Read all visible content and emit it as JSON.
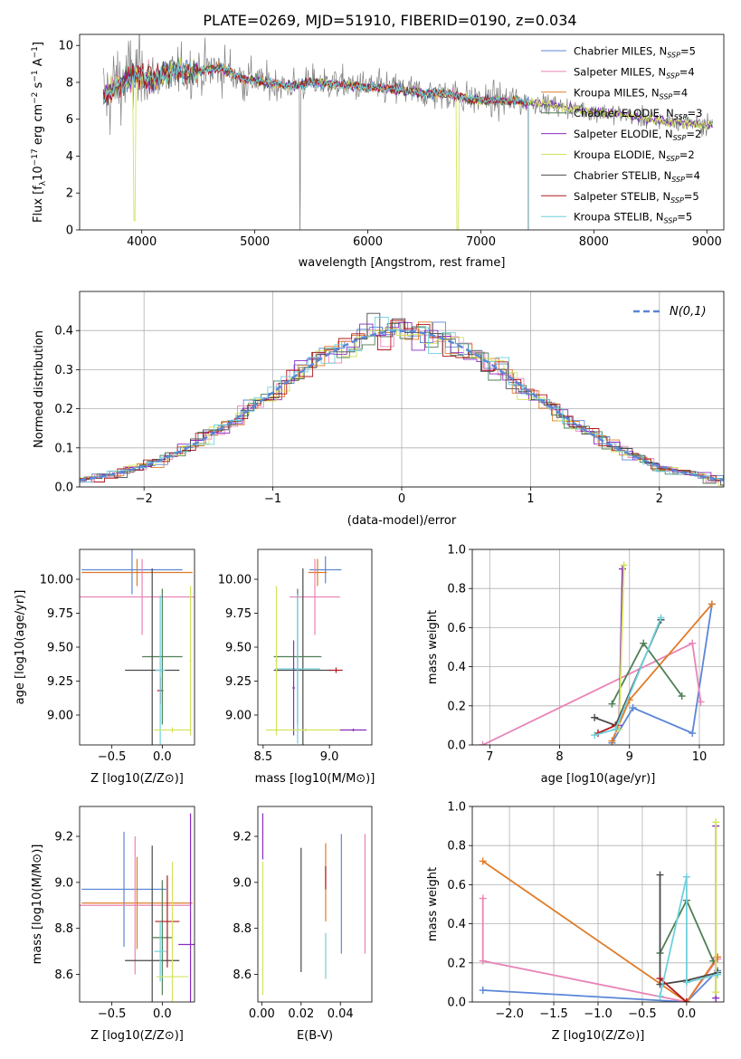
{
  "figure_title": "PLATE=0269, MJD=51910, FIBERID=0190, z=0.034",
  "colors": {
    "chabrier_miles": "#5b86d6",
    "salpeter_miles": "#e884b6",
    "kroupa_miles": "#e07b28",
    "chabrier_elodie": "#4f7f55",
    "salpeter_elodie": "#8a2bc2",
    "kroupa_elodie": "#d4e35c",
    "chabrier_stelib": "#4a4a4a",
    "salpeter_stelib": "#b0181d",
    "kroupa_stelib": "#6fd0dc",
    "data": "#808080",
    "normal": "#5b86d6"
  },
  "chart_data": [
    {
      "id": "spectrum",
      "type": "line",
      "xlabel": "wavelength [Angstrom, rest frame]",
      "ylabel": "Flux [f_λ10^-17 erg cm^-2 s^-1 A^-1]",
      "xlim": [
        3450,
        9150
      ],
      "ylim": [
        0,
        10.6
      ],
      "xticks": [
        4000,
        5000,
        6000,
        7000,
        8000,
        9000
      ],
      "yticks": [
        0,
        2,
        4,
        6,
        8,
        10
      ],
      "legend_position": "upper right",
      "series": [
        {
          "key": "chabrier_miles",
          "name": "Chabrier MILES, N_SSP=5",
          "base": "Chabrier MILES, N",
          "sub": "SSP",
          "tail": "=5"
        },
        {
          "key": "salpeter_miles",
          "name": "Salpeter MILES, N_SSP=4",
          "base": "Salpeter MILES, N",
          "sub": "SSP",
          "tail": "=4"
        },
        {
          "key": "kroupa_miles",
          "name": "Kroupa MILES, N_SSP=4",
          "base": "Kroupa MILES, N",
          "sub": "SSP",
          "tail": "=4"
        },
        {
          "key": "chabrier_elodie",
          "name": "Chabrier ELODIE, N_SSP=3",
          "base": "Chabrier ELODIE, N",
          "sub": "SSP",
          "tail": "=3"
        },
        {
          "key": "salpeter_elodie",
          "name": "Salpeter ELODIE, N_SSP=2",
          "base": "Salpeter ELODIE, N",
          "sub": "SSP",
          "tail": "=2"
        },
        {
          "key": "kroupa_elodie",
          "name": "Kroupa ELODIE, N_SSP=2",
          "base": "Kroupa ELODIE, N",
          "sub": "SSP",
          "tail": "=2"
        },
        {
          "key": "chabrier_stelib",
          "name": "Chabrier STELIB, N_SSP=4",
          "base": "Chabrier STELIB, N",
          "sub": "SSP",
          "tail": "=4"
        },
        {
          "key": "salpeter_stelib",
          "name": "Salpeter STELIB, N_SSP=5",
          "base": "Salpeter STELIB, N",
          "sub": "SSP",
          "tail": "=5"
        },
        {
          "key": "kroupa_stelib",
          "name": "Kroupa STELIB, N_SSP=5",
          "base": "Kroupa STELIB, N",
          "sub": "SSP",
          "tail": "=5"
        }
      ],
      "continuum": [
        [
          3680,
          7.2
        ],
        [
          3800,
          8.0
        ],
        [
          3950,
          8.4
        ],
        [
          4100,
          8.2
        ],
        [
          4300,
          8.6
        ],
        [
          4500,
          8.6
        ],
        [
          4700,
          8.8
        ],
        [
          4900,
          8.2
        ],
        [
          5100,
          8.0
        ],
        [
          5300,
          7.8
        ],
        [
          5500,
          8.0
        ],
        [
          5700,
          7.9
        ],
        [
          5900,
          7.8
        ],
        [
          6100,
          7.7
        ],
        [
          6300,
          7.6
        ],
        [
          6500,
          7.4
        ],
        [
          6700,
          7.4
        ],
        [
          6900,
          7.1
        ],
        [
          7100,
          7.0
        ],
        [
          7300,
          7.0
        ],
        [
          7420,
          6.9
        ],
        [
          7600,
          6.8
        ],
        [
          7800,
          6.6
        ],
        [
          8000,
          6.4
        ],
        [
          8200,
          6.3
        ],
        [
          8400,
          6.1
        ],
        [
          8600,
          5.9
        ],
        [
          8800,
          5.8
        ],
        [
          9000,
          5.7
        ]
      ]
    },
    {
      "id": "residuals",
      "type": "line",
      "xlabel": "(data-model)/error",
      "ylabel": "Normed distribution",
      "xlim": [
        -2.5,
        2.5
      ],
      "ylim": [
        0,
        0.5
      ],
      "xticks": [
        -2,
        -1,
        0,
        1,
        2
      ],
      "yticks": [
        0.0,
        0.1,
        0.2,
        0.3,
        0.4
      ],
      "legend_label": "N(0,1)",
      "legend_position": "upper right"
    },
    {
      "id": "age_vs_Z",
      "type": "scatter",
      "xlabel": "Z [log10(Z/Z⊙)]",
      "ylabel": "age  [log10(age/yr)]",
      "xlim": [
        -0.82,
        0.32
      ],
      "ylim": [
        8.78,
        10.22
      ],
      "xticks": [
        -0.5,
        0.0
      ],
      "yticks": [
        9.0,
        9.25,
        9.5,
        9.75,
        10.0
      ],
      "points": [
        {
          "key": "chabrier_miles",
          "x": -0.3,
          "y": 10.07,
          "xe": 0.5,
          "ye": 0.18
        },
        {
          "key": "kroupa_miles",
          "x": -0.25,
          "y": 10.05,
          "xe": 0.55,
          "ye": 0.1
        },
        {
          "key": "salpeter_miles",
          "x": -0.2,
          "y": 9.87,
          "xe": 0.7,
          "ye": 0.28
        },
        {
          "key": "salpeter_stelib",
          "x": -0.02,
          "y": 9.18,
          "xe": 0.03,
          "ye": 0.1
        },
        {
          "key": "chabrier_elodie",
          "x": 0.0,
          "y": 9.43,
          "xe": 0.2,
          "ye": 0.5
        },
        {
          "key": "chabrier_stelib",
          "x": -0.1,
          "y": 9.33,
          "xe": 0.27,
          "ye": 0.75
        },
        {
          "key": "kroupa_stelib",
          "x": -0.02,
          "y": 9.33,
          "xe": 0.05,
          "ye": 0.55
        },
        {
          "key": "kroupa_elodie",
          "x": 0.1,
          "y": 8.89,
          "xe": 0.18,
          "ye": 0.02
        },
        {
          "key": "kroupa_elodie",
          "x": 0.28,
          "y": 9.4,
          "xe": 0.01,
          "ye": 0.55
        }
      ]
    },
    {
      "id": "age_vs_mass",
      "type": "scatter",
      "xlabel": "mass [log10(M/M⊙)]",
      "ylabel": "",
      "xlim": [
        8.46,
        9.32
      ],
      "ylim": [
        8.78,
        10.22
      ],
      "xticks": [
        8.5,
        9.0
      ],
      "yticks": [
        9.0,
        9.25,
        9.5,
        9.75,
        10.0
      ],
      "points": [
        {
          "key": "chabrier_miles",
          "x": 8.97,
          "y": 10.07,
          "xe": 0.12,
          "ye": 0.1
        },
        {
          "key": "kroupa_miles",
          "x": 8.91,
          "y": 10.05,
          "xe": 0.07,
          "ye": 0.1
        },
        {
          "key": "salpeter_miles",
          "x": 8.89,
          "y": 9.87,
          "xe": 0.19,
          "ye": 0.28
        },
        {
          "key": "chabrier_stelib",
          "x": 8.8,
          "y": 9.33,
          "xe": 0.22,
          "ye": 0.75
        },
        {
          "key": "chabrier_elodie",
          "x": 8.76,
          "y": 9.43,
          "xe": 0.18,
          "ye": 0.5
        },
        {
          "key": "kroupa_stelib",
          "x": 8.76,
          "y": 9.34,
          "xe": 0.17,
          "ye": 0.55
        },
        {
          "key": "salpeter_stelib",
          "x": 9.05,
          "y": 9.33,
          "xe": 0.05,
          "ye": 0.02
        },
        {
          "key": "salpeter_elodie",
          "x": 8.73,
          "y": 9.2,
          "xe": 0.01,
          "ye": 0.35
        },
        {
          "key": "kroupa_elodie",
          "x": 8.82,
          "y": 8.89,
          "xe": 0.3,
          "ye": 0.01
        },
        {
          "key": "salpeter_elodie",
          "x": 9.18,
          "y": 8.89,
          "xe": 0.1,
          "ye": 0.01
        },
        {
          "key": "kroupa_elodie",
          "x": 8.6,
          "y": 9.4,
          "xe": 0.01,
          "ye": 0.55
        }
      ]
    },
    {
      "id": "mass_weight_vs_age",
      "type": "line",
      "xlabel": "age  [log10(age/yr)]",
      "ylabel": "mass weight",
      "xlim": [
        6.75,
        10.35
      ],
      "ylim": [
        0,
        1.0
      ],
      "xticks": [
        7,
        8,
        9,
        10
      ],
      "yticks": [
        0.0,
        0.2,
        0.4,
        0.6,
        0.8,
        1.0
      ],
      "series": [
        {
          "key": "chabrier_miles",
          "x": [
            8.75,
            9.05,
            9.9,
            10.18
          ],
          "y": [
            0.01,
            0.19,
            0.06,
            0.72
          ]
        },
        {
          "key": "salpeter_miles",
          "x": [
            6.9,
            9.9,
            10.02
          ],
          "y": [
            0.0,
            0.52,
            0.22
          ]
        },
        {
          "key": "kroupa_miles",
          "x": [
            8.75,
            9.0,
            10.18
          ],
          "y": [
            0.02,
            0.23,
            0.72
          ]
        },
        {
          "key": "chabrier_elodie",
          "x": [
            8.75,
            9.2,
            9.75
          ],
          "y": [
            0.21,
            0.52,
            0.25
          ]
        },
        {
          "key": "salpeter_elodie",
          "x": [
            8.85,
            8.9
          ],
          "y": [
            0.1,
            0.9
          ]
        },
        {
          "key": "kroupa_elodie",
          "x": [
            8.85,
            8.92
          ],
          "y": [
            0.08,
            0.92
          ]
        },
        {
          "key": "chabrier_stelib",
          "x": [
            8.5,
            8.8,
            9.45
          ],
          "y": [
            0.14,
            0.1,
            0.64
          ]
        },
        {
          "key": "salpeter_stelib",
          "x": [
            8.55,
            8.8
          ],
          "y": [
            0.06,
            0.1
          ]
        },
        {
          "key": "kroupa_stelib",
          "x": [
            8.5,
            8.8,
            9.45
          ],
          "y": [
            0.05,
            0.08,
            0.65
          ]
        }
      ]
    },
    {
      "id": "mass_vs_Z",
      "type": "scatter",
      "xlabel": "Z [log10(Z/Z⊙)]",
      "ylabel": "mass [log10(M/M⊙)]",
      "xlim": [
        -0.82,
        0.32
      ],
      "ylim": [
        8.48,
        9.33
      ],
      "xticks": [
        -0.5,
        0.0
      ],
      "yticks": [
        8.6,
        8.8,
        9.0,
        9.2
      ],
      "points": [
        {
          "key": "chabrier_miles",
          "x": -0.38,
          "y": 8.97,
          "xe": 0.42,
          "ye": 0.25
        },
        {
          "key": "kroupa_miles",
          "x": -0.25,
          "y": 8.91,
          "xe": 0.55,
          "ye": 0.2
        },
        {
          "key": "salpeter_miles",
          "x": -0.27,
          "y": 8.9,
          "xe": 0.55,
          "ye": 0.3
        },
        {
          "key": "chabrier_stelib",
          "x": -0.1,
          "y": 8.66,
          "xe": 0.27,
          "ye": 0.5
        },
        {
          "key": "chabrier_elodie",
          "x": 0.0,
          "y": 8.76,
          "xe": 0.1,
          "ye": 0.25
        },
        {
          "key": "salpeter_stelib",
          "x": 0.05,
          "y": 8.83,
          "xe": 0.12,
          "ye": 0.2
        },
        {
          "key": "kroupa_stelib",
          "x": -0.02,
          "y": 8.7,
          "xe": 0.06,
          "ye": 0.13
        },
        {
          "key": "salpeter_elodie",
          "x": 0.28,
          "y": 8.73,
          "xe": 0.12,
          "ye": 0.57
        },
        {
          "key": "kroupa_elodie",
          "x": 0.1,
          "y": 8.59,
          "xe": 0.16,
          "ye": 0.5
        }
      ]
    },
    {
      "id": "mass_vs_ebv",
      "type": "scatter",
      "xlabel": "E(B-V)",
      "ylabel": "",
      "xlim": [
        -0.002,
        0.056
      ],
      "ylim": [
        8.48,
        9.33
      ],
      "xticks": [
        0.0,
        0.02,
        0.04
      ],
      "yticks": [
        8.6,
        8.8,
        9.0,
        9.2
      ],
      "points": [
        {
          "key": "salpeter_elodie",
          "x": 0.0005,
          "y": 9.2,
          "xe": 0,
          "ye": 0.1
        },
        {
          "key": "kroupa_elodie",
          "x": 0.0005,
          "y": 8.8,
          "xe": 0,
          "ye": 0.29
        },
        {
          "key": "chabrier_stelib",
          "x": 0.02,
          "y": 8.88,
          "xe": 0,
          "ye": 0.27
        },
        {
          "key": "kroupa_miles",
          "x": 0.0325,
          "y": 9.0,
          "xe": 0,
          "ye": 0.17
        },
        {
          "key": "salpeter_stelib",
          "x": 0.0325,
          "y": 9.02,
          "xe": 0,
          "ye": 0.05
        },
        {
          "key": "kroupa_stelib",
          "x": 0.0325,
          "y": 8.68,
          "xe": 0,
          "ye": 0.1
        },
        {
          "key": "chabrier_miles",
          "x": 0.0405,
          "y": 8.95,
          "xe": 0,
          "ye": 0.26
        },
        {
          "key": "salpeter_miles",
          "x": 0.0525,
          "y": 8.95,
          "xe": 0,
          "ye": 0.26
        }
      ]
    },
    {
      "id": "mass_weight_vs_Z",
      "type": "line",
      "xlabel": "Z [log10(Z/Z⊙)]",
      "ylabel": "mass weight",
      "xlim": [
        -2.42,
        0.42
      ],
      "ylim": [
        0,
        1.0
      ],
      "xticks": [
        -2.0,
        -1.5,
        -1.0,
        -0.5,
        0.0
      ],
      "yticks": [
        0.0,
        0.2,
        0.4,
        0.6,
        0.8,
        1.0
      ],
      "series": [
        {
          "key": "chabrier_miles",
          "x": [
            -2.3,
            0.0,
            0.35
          ],
          "y": [
            0.06,
            0.0,
            0.16
          ]
        },
        {
          "key": "salpeter_miles",
          "x": [
            -2.3,
            -2.3,
            0.0,
            0.35
          ],
          "y": [
            0.53,
            0.21,
            0.0,
            0.22
          ]
        },
        {
          "key": "kroupa_miles",
          "x": [
            -2.3,
            0.0,
            0.35
          ],
          "y": [
            0.72,
            0.0,
            0.23
          ]
        },
        {
          "key": "chabrier_elodie",
          "x": [
            -0.3,
            0.0,
            0.3
          ],
          "y": [
            0.25,
            0.52,
            0.21
          ]
        },
        {
          "key": "salpeter_elodie",
          "x": [
            0.33,
            0.33
          ],
          "y": [
            0.02,
            0.9
          ]
        },
        {
          "key": "kroupa_elodie",
          "x": [
            0.33,
            0.33
          ],
          "y": [
            0.05,
            0.92
          ]
        },
        {
          "key": "chabrier_stelib",
          "x": [
            -0.3,
            -0.3,
            0.0,
            0.35
          ],
          "y": [
            0.65,
            0.09,
            0.11,
            0.15
          ]
        },
        {
          "key": "salpeter_stelib",
          "x": [
            -0.3,
            0.0
          ],
          "y": [
            0.12,
            0.0
          ]
        },
        {
          "key": "kroupa_stelib",
          "x": [
            -0.3,
            0.0,
            0.0,
            0.35
          ],
          "y": [
            0.03,
            0.64,
            0.1,
            0.14
          ]
        }
      ]
    }
  ]
}
